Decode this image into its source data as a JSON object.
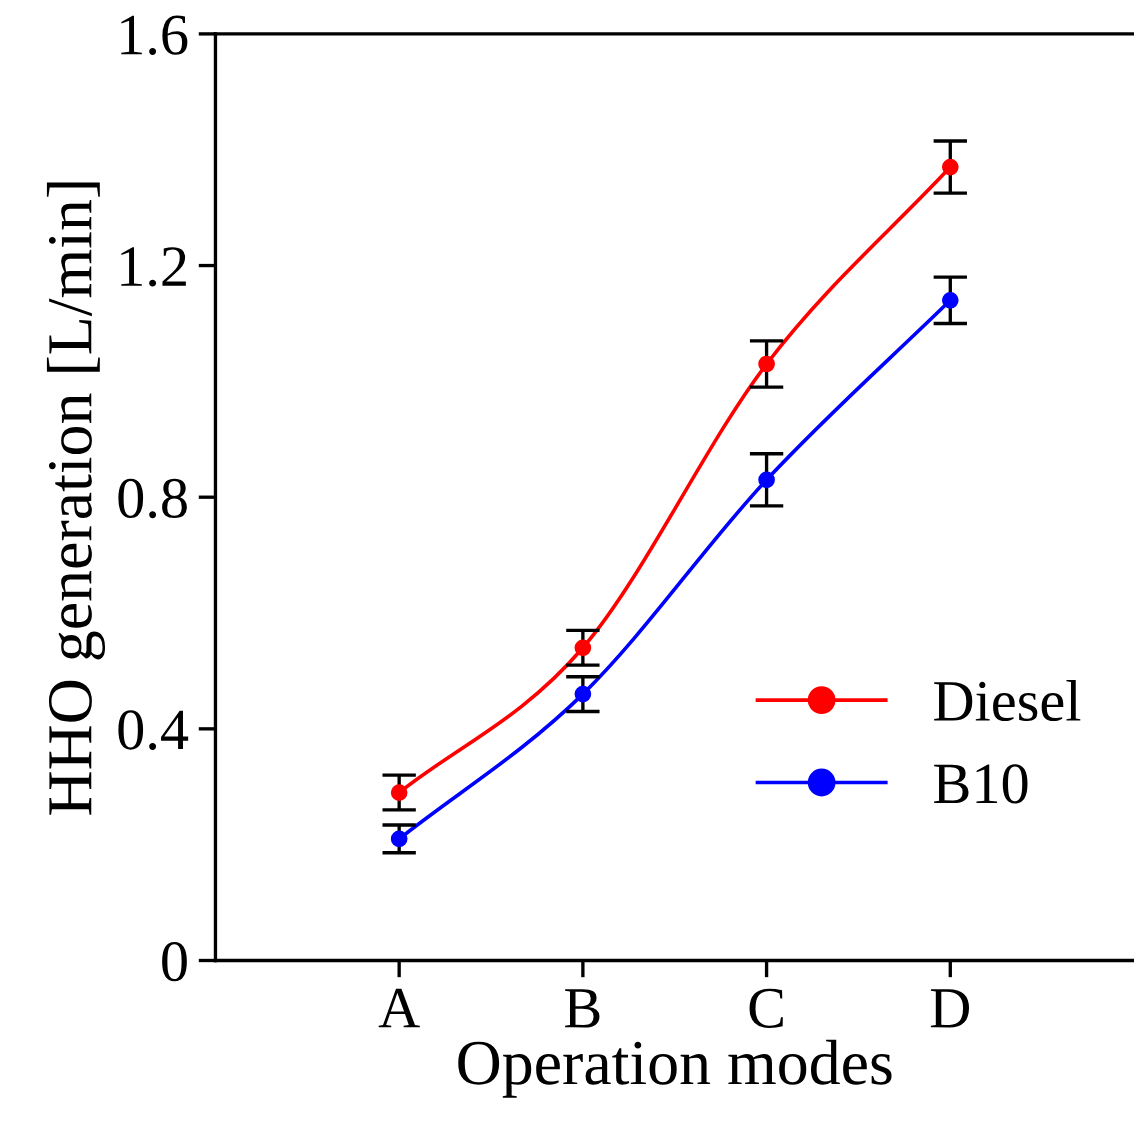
{
  "chart_data": {
    "type": "line",
    "xlabel": "Operation modes",
    "ylabel": "HHO generation [L/min]",
    "categories": [
      "A",
      "B",
      "C",
      "D"
    ],
    "series": [
      {
        "name": "Diesel",
        "color": "#ff0000",
        "values": [
          0.29,
          0.54,
          1.03,
          1.37
        ],
        "errors": [
          0.03,
          0.03,
          0.04,
          0.045
        ]
      },
      {
        "name": "B10",
        "color": "#0000ff",
        "values": [
          0.21,
          0.46,
          0.83,
          1.14
        ],
        "errors": [
          0.024,
          0.03,
          0.045,
          0.04
        ]
      }
    ],
    "ylim": [
      0,
      1.6
    ],
    "yticks": [
      0,
      0.4,
      0.8,
      1.2,
      1.6
    ],
    "grid": false,
    "legend": "bottom right",
    "marker": "circle",
    "line_style": "solid"
  }
}
